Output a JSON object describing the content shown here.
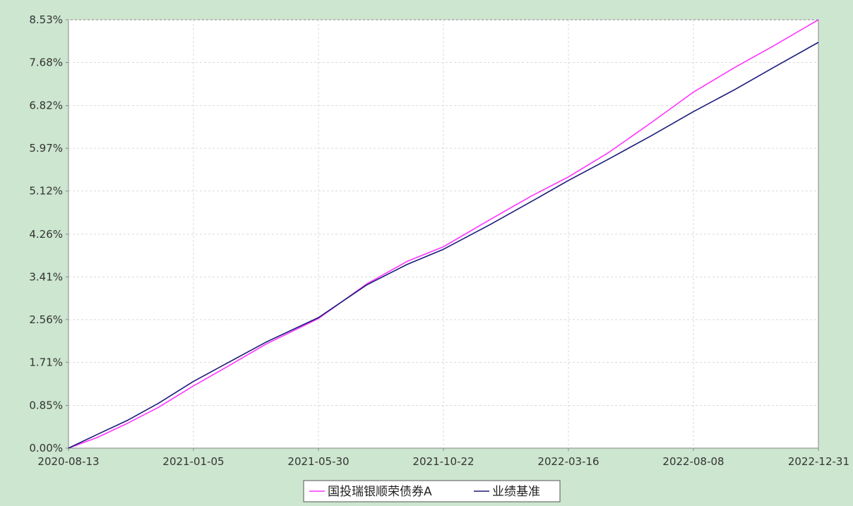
{
  "colors": {
    "background": "#cde6cf",
    "plot_background": "#ffffff",
    "grid": "#d9d9d9",
    "axis": "#888888",
    "fund_line": "#ff33ff",
    "benchmark_line": "#1a1a7a"
  },
  "chart_data": {
    "type": "line",
    "title": "",
    "xlabel": "",
    "ylabel": "",
    "grid": true,
    "legend_position": "bottom-center",
    "x_range": [
      "2020-08-13",
      "2022-12-31"
    ],
    "ylim": [
      0.0,
      8.53
    ],
    "y_unit": "%",
    "x_ticks": [
      "2020-08-13",
      "2021-01-05",
      "2021-05-30",
      "2021-10-22",
      "2022-03-16",
      "2022-08-08",
      "2022-12-31"
    ],
    "y_ticks": [
      0.0,
      0.85,
      1.71,
      2.56,
      3.41,
      4.26,
      5.12,
      5.97,
      6.82,
      7.68,
      8.53
    ],
    "y_tick_labels": [
      "0.00%",
      "0.85%",
      "1.71%",
      "2.56%",
      "3.41%",
      "4.26%",
      "5.12%",
      "5.97%",
      "6.82%",
      "7.68%",
      "8.53%"
    ],
    "series": [
      {
        "name": "国投瑞银顺荣债券A",
        "color": "#ff33ff",
        "points": [
          [
            "2020-08-13",
            0.0
          ],
          [
            "2020-09-15",
            0.21
          ],
          [
            "2020-10-20",
            0.49
          ],
          [
            "2020-11-25",
            0.81
          ],
          [
            "2021-01-05",
            1.24
          ],
          [
            "2021-02-15",
            1.64
          ],
          [
            "2021-03-30",
            2.07
          ],
          [
            "2021-05-30",
            2.58
          ],
          [
            "2021-07-25",
            3.27
          ],
          [
            "2021-09-10",
            3.72
          ],
          [
            "2021-10-22",
            4.01
          ],
          [
            "2021-12-15",
            4.55
          ],
          [
            "2022-02-01",
            5.02
          ],
          [
            "2022-03-16",
            5.4
          ],
          [
            "2022-05-01",
            5.88
          ],
          [
            "2022-06-20",
            6.48
          ],
          [
            "2022-08-08",
            7.09
          ],
          [
            "2022-09-25",
            7.58
          ],
          [
            "2022-11-10",
            8.02
          ],
          [
            "2022-12-31",
            8.53
          ]
        ]
      },
      {
        "name": "业绩基准",
        "color": "#1a1a7a",
        "points": [
          [
            "2020-08-13",
            0.0
          ],
          [
            "2020-09-15",
            0.27
          ],
          [
            "2020-10-20",
            0.55
          ],
          [
            "2020-11-25",
            0.89
          ],
          [
            "2021-01-05",
            1.33
          ],
          [
            "2021-02-15",
            1.71
          ],
          [
            "2021-03-30",
            2.11
          ],
          [
            "2021-05-30",
            2.6
          ],
          [
            "2021-07-25",
            3.25
          ],
          [
            "2021-09-10",
            3.66
          ],
          [
            "2021-10-22",
            3.96
          ],
          [
            "2021-12-15",
            4.45
          ],
          [
            "2022-02-01",
            4.91
          ],
          [
            "2022-03-16",
            5.33
          ],
          [
            "2022-05-01",
            5.75
          ],
          [
            "2022-06-20",
            6.22
          ],
          [
            "2022-08-08",
            6.7
          ],
          [
            "2022-09-25",
            7.14
          ],
          [
            "2022-11-10",
            7.59
          ],
          [
            "2022-12-31",
            8.08
          ]
        ]
      }
    ]
  }
}
